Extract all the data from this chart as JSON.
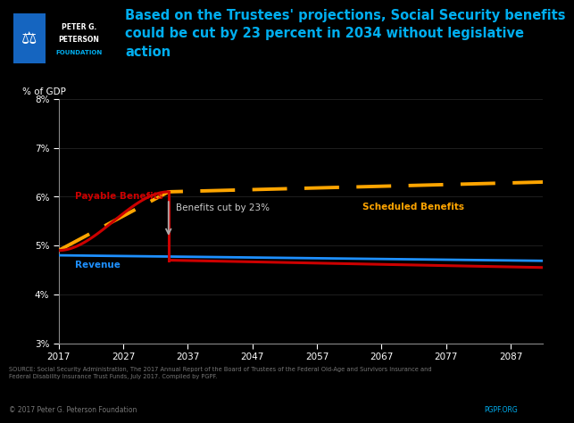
{
  "title": "Based on the Trustees' projections, Social Security benefits\ncould be cut by 23 percent in 2034 without legislative\naction",
  "title_color": "#00AEEF",
  "ylabel": "% of GDP",
  "background_color": "#000000",
  "plot_bg_color": "#000000",
  "text_color": "#ffffff",
  "axis_color": "#888888",
  "year_start": 2017,
  "year_end": 2092,
  "ylim": [
    0.03,
    0.08
  ],
  "yticks": [
    0.03,
    0.04,
    0.05,
    0.06,
    0.07,
    0.08
  ],
  "ytick_labels": [
    "3%",
    "4%",
    "5%",
    "6%",
    "7%",
    "8%"
  ],
  "xticks": [
    2017,
    2027,
    2037,
    2047,
    2057,
    2067,
    2077,
    2087
  ],
  "scheduled_color": "#FFA500",
  "payable_color": "#CC0000",
  "revenue_color": "#1E90FF",
  "cut_year": 2034,
  "source_text": "SOURCE: Social Security Administration, The 2017 Annual Report of the Board of Trustees of the Federal Old-Age and Survivors Insurance and\nFederal Disability Insurance Trust Funds, July 2017. Compiled by PGPF.",
  "copyright_text": "© 2017 Peter G. Peterson Foundation",
  "logo_text": "PGPF.ORG",
  "logo_text_color": "#00AEEF",
  "logo_bg_color": "#003087",
  "logo_name_color": "#ffffff",
  "logo_foundation_color": "#00AEEF"
}
